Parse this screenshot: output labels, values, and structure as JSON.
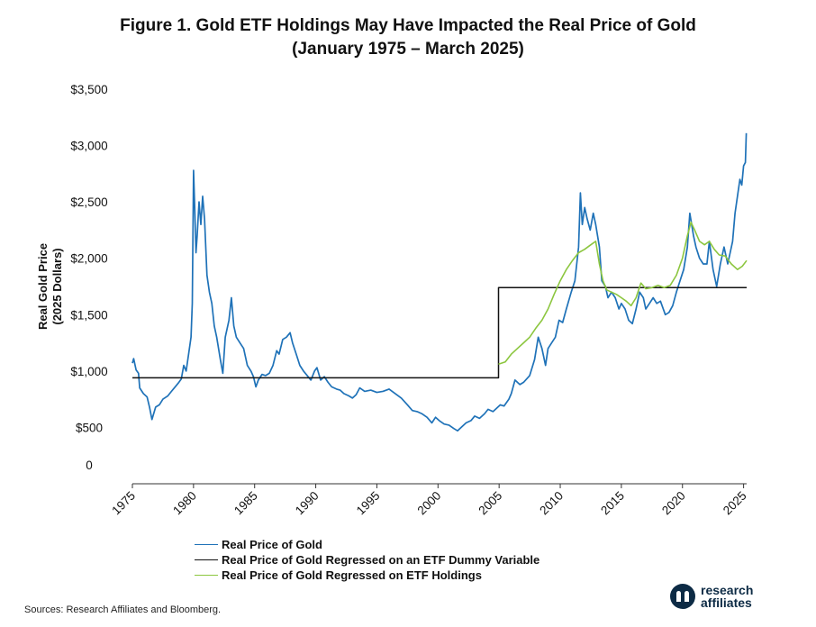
{
  "title_line1": "Figure 1. Gold ETF Holdings May Have Impacted the Real Price of Gold",
  "title_line2": "(January 1975 – March 2025)",
  "source": "Sources: Research Affiliates and Bloomberg.",
  "logo": {
    "line1": "research",
    "line2": "affiliates",
    "icon": "research-affiliates-logo-icon"
  },
  "chart_data": {
    "type": "line",
    "ylabel": [
      "Real Gold Price",
      "(2025 Dollars)"
    ],
    "ylim": [
      0,
      3500
    ],
    "yticks": [
      {
        "value": 0,
        "label": "0"
      },
      {
        "value": 500,
        "label": "$500"
      },
      {
        "value": 1000,
        "label": "$1,000"
      },
      {
        "value": 1500,
        "label": "$1,500"
      },
      {
        "value": 2000,
        "label": "$2,000"
      },
      {
        "value": 2500,
        "label": "$2,500"
      },
      {
        "value": 3000,
        "label": "$3,000"
      },
      {
        "value": 3500,
        "label": "$3,500"
      }
    ],
    "xlim": [
      1975,
      2025.25
    ],
    "xticks": [
      "1975",
      "1980",
      "1985",
      "1990",
      "1995",
      "2000",
      "2005",
      "2010",
      "2015",
      "2020",
      "2025"
    ],
    "grid": false,
    "legend_position": "bottom",
    "series": [
      {
        "name": "Real Price of Gold",
        "color": "#1f72b8",
        "points": [
          [
            1975.0,
            1070
          ],
          [
            1975.1,
            1110
          ],
          [
            1975.3,
            1010
          ],
          [
            1975.5,
            980
          ],
          [
            1975.6,
            850
          ],
          [
            1975.9,
            800
          ],
          [
            1976.2,
            770
          ],
          [
            1976.4,
            680
          ],
          [
            1976.6,
            570
          ],
          [
            1976.9,
            680
          ],
          [
            1977.2,
            700
          ],
          [
            1977.5,
            750
          ],
          [
            1977.9,
            780
          ],
          [
            1978.2,
            820
          ],
          [
            1978.5,
            860
          ],
          [
            1978.8,
            900
          ],
          [
            1979.0,
            930
          ],
          [
            1979.2,
            1050
          ],
          [
            1979.4,
            1000
          ],
          [
            1979.6,
            1150
          ],
          [
            1979.8,
            1300
          ],
          [
            1979.9,
            1600
          ],
          [
            1980.0,
            2780
          ],
          [
            1980.1,
            2450
          ],
          [
            1980.2,
            2050
          ],
          [
            1980.3,
            2200
          ],
          [
            1980.45,
            2500
          ],
          [
            1980.6,
            2300
          ],
          [
            1980.75,
            2550
          ],
          [
            1980.9,
            2350
          ],
          [
            1981.1,
            1850
          ],
          [
            1981.3,
            1700
          ],
          [
            1981.5,
            1600
          ],
          [
            1981.7,
            1400
          ],
          [
            1981.9,
            1300
          ],
          [
            1982.2,
            1100
          ],
          [
            1982.4,
            980
          ],
          [
            1982.6,
            1300
          ],
          [
            1982.9,
            1450
          ],
          [
            1983.1,
            1650
          ],
          [
            1983.3,
            1400
          ],
          [
            1983.5,
            1300
          ],
          [
            1983.8,
            1250
          ],
          [
            1984.1,
            1200
          ],
          [
            1984.4,
            1050
          ],
          [
            1984.7,
            1000
          ],
          [
            1984.9,
            950
          ],
          [
            1985.1,
            860
          ],
          [
            1985.3,
            920
          ],
          [
            1985.6,
            970
          ],
          [
            1985.9,
            960
          ],
          [
            1986.2,
            980
          ],
          [
            1986.5,
            1050
          ],
          [
            1986.8,
            1180
          ],
          [
            1987.0,
            1150
          ],
          [
            1987.3,
            1280
          ],
          [
            1987.6,
            1300
          ],
          [
            1987.9,
            1340
          ],
          [
            1988.1,
            1250
          ],
          [
            1988.4,
            1150
          ],
          [
            1988.7,
            1050
          ],
          [
            1989.0,
            1000
          ],
          [
            1989.3,
            960
          ],
          [
            1989.6,
            920
          ],
          [
            1989.9,
            1000
          ],
          [
            1990.1,
            1030
          ],
          [
            1990.4,
            920
          ],
          [
            1990.7,
            950
          ],
          [
            1991.0,
            900
          ],
          [
            1991.3,
            860
          ],
          [
            1991.7,
            840
          ],
          [
            1992.0,
            830
          ],
          [
            1992.3,
            800
          ],
          [
            1992.7,
            780
          ],
          [
            1993.0,
            760
          ],
          [
            1993.3,
            790
          ],
          [
            1993.6,
            850
          ],
          [
            1994.0,
            820
          ],
          [
            1994.5,
            830
          ],
          [
            1995.0,
            810
          ],
          [
            1995.5,
            820
          ],
          [
            1996.0,
            840
          ],
          [
            1996.5,
            800
          ],
          [
            1997.0,
            760
          ],
          [
            1997.5,
            700
          ],
          [
            1997.9,
            650
          ],
          [
            1998.3,
            640
          ],
          [
            1998.7,
            620
          ],
          [
            1999.1,
            590
          ],
          [
            1999.5,
            540
          ],
          [
            1999.8,
            590
          ],
          [
            2000.1,
            560
          ],
          [
            2000.5,
            530
          ],
          [
            2000.9,
            520
          ],
          [
            2001.3,
            490
          ],
          [
            2001.6,
            470
          ],
          [
            2001.9,
            500
          ],
          [
            2002.3,
            540
          ],
          [
            2002.7,
            560
          ],
          [
            2003.0,
            600
          ],
          [
            2003.4,
            580
          ],
          [
            2003.8,
            620
          ],
          [
            2004.1,
            660
          ],
          [
            2004.5,
            640
          ],
          [
            2004.9,
            680
          ],
          [
            2005.1,
            700
          ],
          [
            2005.4,
            690
          ],
          [
            2005.8,
            750
          ],
          [
            2006.0,
            800
          ],
          [
            2006.3,
            920
          ],
          [
            2006.7,
            880
          ],
          [
            2007.0,
            900
          ],
          [
            2007.5,
            960
          ],
          [
            2007.9,
            1100
          ],
          [
            2008.2,
            1300
          ],
          [
            2008.5,
            1200
          ],
          [
            2008.8,
            1050
          ],
          [
            2009.0,
            1200
          ],
          [
            2009.3,
            1250
          ],
          [
            2009.6,
            1300
          ],
          [
            2009.9,
            1450
          ],
          [
            2010.2,
            1430
          ],
          [
            2010.5,
            1550
          ],
          [
            2010.9,
            1700
          ],
          [
            2011.2,
            1800
          ],
          [
            2011.5,
            2100
          ],
          [
            2011.65,
            2580
          ],
          [
            2011.8,
            2300
          ],
          [
            2012.0,
            2450
          ],
          [
            2012.2,
            2350
          ],
          [
            2012.45,
            2250
          ],
          [
            2012.7,
            2400
          ],
          [
            2012.9,
            2300
          ],
          [
            2013.2,
            2100
          ],
          [
            2013.4,
            1800
          ],
          [
            2013.7,
            1750
          ],
          [
            2013.9,
            1650
          ],
          [
            2014.2,
            1700
          ],
          [
            2014.5,
            1650
          ],
          [
            2014.8,
            1550
          ],
          [
            2015.0,
            1600
          ],
          [
            2015.3,
            1550
          ],
          [
            2015.6,
            1450
          ],
          [
            2015.9,
            1420
          ],
          [
            2016.2,
            1550
          ],
          [
            2016.5,
            1700
          ],
          [
            2016.8,
            1650
          ],
          [
            2017.0,
            1550
          ],
          [
            2017.3,
            1600
          ],
          [
            2017.6,
            1650
          ],
          [
            2017.9,
            1600
          ],
          [
            2018.2,
            1620
          ],
          [
            2018.6,
            1500
          ],
          [
            2018.9,
            1520
          ],
          [
            2019.2,
            1580
          ],
          [
            2019.5,
            1700
          ],
          [
            2019.8,
            1800
          ],
          [
            2020.1,
            1900
          ],
          [
            2020.4,
            2100
          ],
          [
            2020.6,
            2400
          ],
          [
            2020.9,
            2200
          ],
          [
            2021.1,
            2100
          ],
          [
            2021.4,
            2000
          ],
          [
            2021.7,
            1950
          ],
          [
            2022.0,
            1950
          ],
          [
            2022.2,
            2150
          ],
          [
            2022.5,
            1900
          ],
          [
            2022.8,
            1750
          ],
          [
            2023.1,
            1950
          ],
          [
            2023.4,
            2100
          ],
          [
            2023.7,
            1950
          ],
          [
            2023.9,
            2050
          ],
          [
            2024.1,
            2150
          ],
          [
            2024.3,
            2400
          ],
          [
            2024.5,
            2550
          ],
          [
            2024.7,
            2700
          ],
          [
            2024.85,
            2650
          ],
          [
            2025.0,
            2820
          ],
          [
            2025.15,
            2850
          ],
          [
            2025.22,
            3110
          ]
        ]
      },
      {
        "name": "Real Price of Gold Regressed on an ETF Dummy Variable",
        "color": "#111111",
        "points": [
          [
            1975.0,
            940
          ],
          [
            2004.95,
            940
          ],
          [
            2004.95,
            1740
          ],
          [
            2025.25,
            1740
          ]
        ]
      },
      {
        "name": "Real Price of Gold Regressed on ETF Holdings",
        "color": "#8cc63f",
        "points": [
          [
            2004.95,
            1060
          ],
          [
            2005.5,
            1080
          ],
          [
            2006.0,
            1150
          ],
          [
            2006.5,
            1200
          ],
          [
            2007.0,
            1250
          ],
          [
            2007.5,
            1300
          ],
          [
            2008.0,
            1380
          ],
          [
            2008.5,
            1450
          ],
          [
            2009.0,
            1550
          ],
          [
            2009.5,
            1680
          ],
          [
            2010.0,
            1800
          ],
          [
            2010.5,
            1900
          ],
          [
            2011.0,
            1980
          ],
          [
            2011.5,
            2050
          ],
          [
            2012.0,
            2080
          ],
          [
            2012.5,
            2120
          ],
          [
            2012.9,
            2150
          ],
          [
            2013.2,
            1950
          ],
          [
            2013.5,
            1800
          ],
          [
            2013.8,
            1720
          ],
          [
            2014.2,
            1700
          ],
          [
            2014.6,
            1680
          ],
          [
            2015.0,
            1650
          ],
          [
            2015.4,
            1620
          ],
          [
            2015.8,
            1580
          ],
          [
            2016.2,
            1650
          ],
          [
            2016.6,
            1780
          ],
          [
            2017.0,
            1730
          ],
          [
            2017.5,
            1740
          ],
          [
            2018.0,
            1760
          ],
          [
            2018.5,
            1740
          ],
          [
            2019.0,
            1760
          ],
          [
            2019.5,
            1850
          ],
          [
            2020.0,
            2000
          ],
          [
            2020.4,
            2200
          ],
          [
            2020.7,
            2320
          ],
          [
            2021.0,
            2250
          ],
          [
            2021.4,
            2150
          ],
          [
            2021.8,
            2120
          ],
          [
            2022.2,
            2150
          ],
          [
            2022.6,
            2080
          ],
          [
            2023.0,
            2030
          ],
          [
            2023.5,
            2020
          ],
          [
            2024.0,
            1950
          ],
          [
            2024.5,
            1900
          ],
          [
            2024.9,
            1930
          ],
          [
            2025.25,
            1980
          ]
        ]
      }
    ]
  }
}
